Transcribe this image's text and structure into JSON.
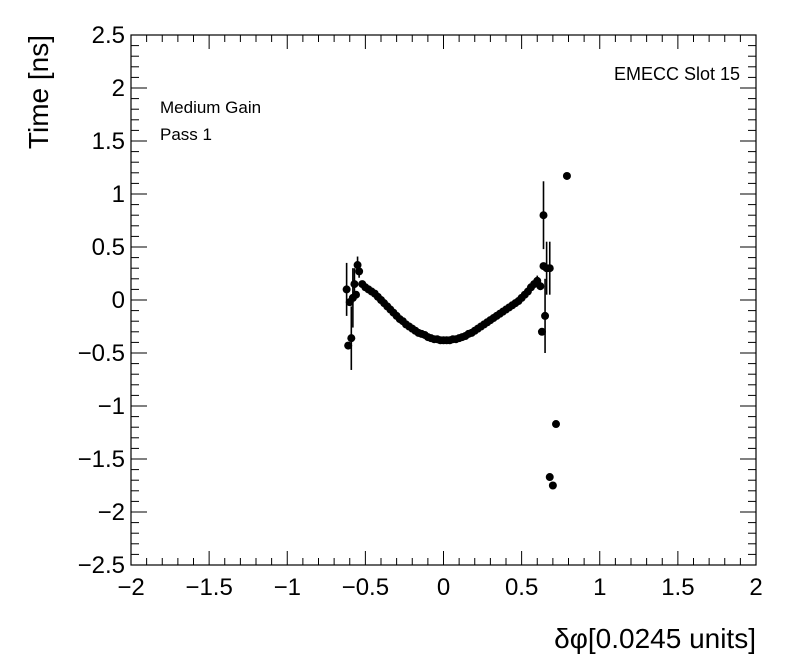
{
  "chart_data": {
    "type": "scatter",
    "title": "",
    "xlabel": "δφ[0.0245 units]",
    "ylabel": "Time [ns]",
    "xlim": [
      -2,
      2
    ],
    "ylim": [
      -2.5,
      2.5
    ],
    "xticks": [
      -2,
      -1.5,
      -1,
      -0.5,
      0,
      0.5,
      1,
      1.5,
      2
    ],
    "yticks": [
      -2.5,
      -2,
      -1.5,
      -1,
      -0.5,
      0,
      0.5,
      1,
      1.5,
      2,
      2.5
    ],
    "xtick_labels": [
      "−2",
      "−1.5",
      "−1",
      "−0.5",
      "0",
      "0.5",
      "1",
      "1.5",
      "2"
    ],
    "ytick_labels": [
      "−2.5",
      "−2",
      "−1.5",
      "−1",
      "−0.5",
      "0",
      "0.5",
      "1",
      "1.5",
      "2",
      "2.5"
    ],
    "grid": false,
    "annotations": {
      "top_left_line1": "Medium Gain",
      "top_left_line2": "Pass 1",
      "top_right": "EMECC Slot 15"
    },
    "colors": {
      "marker": "#000000",
      "axis": "#000000",
      "background": "#ffffff"
    },
    "series": [
      {
        "points": [
          {
            "x": -0.62,
            "y": 0.1,
            "err": 0.25
          },
          {
            "x": -0.61,
            "y": -0.43,
            "err": 0.0
          },
          {
            "x": -0.6,
            "y": -0.02,
            "err": 0.0
          },
          {
            "x": -0.59,
            "y": -0.36,
            "err": 0.3
          },
          {
            "x": -0.58,
            "y": 0.02,
            "err": 0.28
          },
          {
            "x": -0.57,
            "y": 0.15,
            "err": 0.15
          },
          {
            "x": -0.56,
            "y": 0.05,
            "err": 0.0
          },
          {
            "x": -0.55,
            "y": 0.33,
            "err": 0.08
          },
          {
            "x": -0.54,
            "y": 0.27,
            "err": 0.06
          },
          {
            "x": -0.52,
            "y": 0.15,
            "err": 0.0
          },
          {
            "x": -0.5,
            "y": 0.12,
            "err": 0.0
          },
          {
            "x": -0.48,
            "y": 0.1,
            "err": 0.0
          },
          {
            "x": -0.46,
            "y": 0.08,
            "err": 0.0
          },
          {
            "x": -0.44,
            "y": 0.06,
            "err": 0.0
          },
          {
            "x": -0.42,
            "y": 0.03,
            "err": 0.0
          },
          {
            "x": -0.4,
            "y": 0.0,
            "err": 0.0
          },
          {
            "x": -0.38,
            "y": -0.03,
            "err": 0.0
          },
          {
            "x": -0.36,
            "y": -0.06,
            "err": 0.0
          },
          {
            "x": -0.34,
            "y": -0.09,
            "err": 0.0
          },
          {
            "x": -0.32,
            "y": -0.12,
            "err": 0.0
          },
          {
            "x": -0.3,
            "y": -0.15,
            "err": 0.0
          },
          {
            "x": -0.28,
            "y": -0.18,
            "err": 0.0
          },
          {
            "x": -0.26,
            "y": -0.2,
            "err": 0.0
          },
          {
            "x": -0.24,
            "y": -0.23,
            "err": 0.0
          },
          {
            "x": -0.22,
            "y": -0.25,
            "err": 0.0
          },
          {
            "x": -0.2,
            "y": -0.27,
            "err": 0.0
          },
          {
            "x": -0.18,
            "y": -0.29,
            "err": 0.0
          },
          {
            "x": -0.16,
            "y": -0.31,
            "err": 0.0
          },
          {
            "x": -0.14,
            "y": -0.32,
            "err": 0.0
          },
          {
            "x": -0.12,
            "y": -0.33,
            "err": 0.0
          },
          {
            "x": -0.1,
            "y": -0.35,
            "err": 0.0
          },
          {
            "x": -0.08,
            "y": -0.36,
            "err": 0.0
          },
          {
            "x": -0.06,
            "y": -0.37,
            "err": 0.0
          },
          {
            "x": -0.04,
            "y": -0.37,
            "err": 0.0
          },
          {
            "x": -0.02,
            "y": -0.38,
            "err": 0.0
          },
          {
            "x": 0.0,
            "y": -0.38,
            "err": 0.0
          },
          {
            "x": 0.02,
            "y": -0.38,
            "err": 0.0
          },
          {
            "x": 0.04,
            "y": -0.38,
            "err": 0.0
          },
          {
            "x": 0.06,
            "y": -0.37,
            "err": 0.0
          },
          {
            "x": 0.08,
            "y": -0.37,
            "err": 0.0
          },
          {
            "x": 0.1,
            "y": -0.36,
            "err": 0.0
          },
          {
            "x": 0.12,
            "y": -0.35,
            "err": 0.0
          },
          {
            "x": 0.14,
            "y": -0.34,
            "err": 0.0
          },
          {
            "x": 0.16,
            "y": -0.32,
            "err": 0.0
          },
          {
            "x": 0.18,
            "y": -0.31,
            "err": 0.0
          },
          {
            "x": 0.2,
            "y": -0.29,
            "err": 0.0
          },
          {
            "x": 0.22,
            "y": -0.27,
            "err": 0.0
          },
          {
            "x": 0.24,
            "y": -0.25,
            "err": 0.0
          },
          {
            "x": 0.26,
            "y": -0.23,
            "err": 0.0
          },
          {
            "x": 0.28,
            "y": -0.21,
            "err": 0.0
          },
          {
            "x": 0.3,
            "y": -0.19,
            "err": 0.0
          },
          {
            "x": 0.32,
            "y": -0.17,
            "err": 0.0
          },
          {
            "x": 0.34,
            "y": -0.15,
            "err": 0.0
          },
          {
            "x": 0.36,
            "y": -0.13,
            "err": 0.0
          },
          {
            "x": 0.38,
            "y": -0.11,
            "err": 0.0
          },
          {
            "x": 0.4,
            "y": -0.09,
            "err": 0.0
          },
          {
            "x": 0.42,
            "y": -0.07,
            "err": 0.0
          },
          {
            "x": 0.44,
            "y": -0.05,
            "err": 0.0
          },
          {
            "x": 0.46,
            "y": -0.03,
            "err": 0.0
          },
          {
            "x": 0.48,
            "y": -0.01,
            "err": 0.0
          },
          {
            "x": 0.5,
            "y": 0.02,
            "err": 0.0
          },
          {
            "x": 0.52,
            "y": 0.05,
            "err": 0.0
          },
          {
            "x": 0.54,
            "y": 0.08,
            "err": 0.0
          },
          {
            "x": 0.56,
            "y": 0.12,
            "err": 0.0
          },
          {
            "x": 0.58,
            "y": 0.15,
            "err": 0.0
          },
          {
            "x": 0.6,
            "y": 0.18,
            "err": 0.05
          },
          {
            "x": 0.62,
            "y": 0.13,
            "err": 0.0
          },
          {
            "x": 0.63,
            "y": -0.3,
            "err": 0.0
          },
          {
            "x": 0.64,
            "y": 0.8,
            "err": 0.32
          },
          {
            "x": 0.64,
            "y": 0.32,
            "err": 0.0
          },
          {
            "x": 0.65,
            "y": -0.15,
            "err": 0.35
          },
          {
            "x": 0.66,
            "y": 0.3,
            "err": 0.25
          },
          {
            "x": 0.68,
            "y": 0.3,
            "err": 0.25
          },
          {
            "x": 0.68,
            "y": -1.67,
            "err": 0.0
          },
          {
            "x": 0.7,
            "y": -1.75,
            "err": 0.0
          },
          {
            "x": 0.72,
            "y": -1.17,
            "err": 0.0
          },
          {
            "x": 0.79,
            "y": 1.17,
            "err": 0.0
          }
        ]
      }
    ]
  }
}
